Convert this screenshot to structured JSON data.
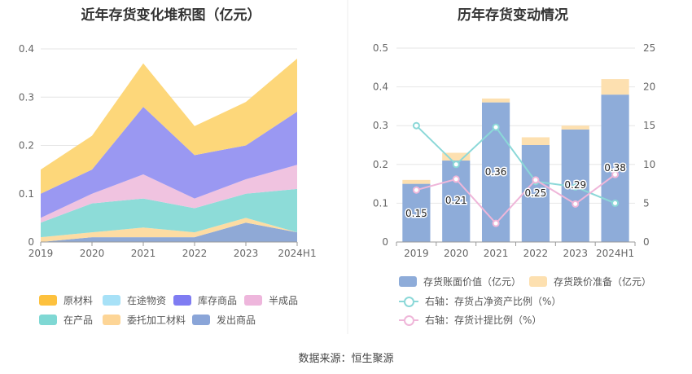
{
  "left_chart": {
    "title": "近年存货变化堆积图（亿元）",
    "chart_data": {
      "type": "area",
      "stacked": true,
      "categories": [
        "2019",
        "2020",
        "2021",
        "2022",
        "2023",
        "2024H1"
      ],
      "ylim": [
        0,
        0.4
      ],
      "yticks": [
        "0",
        "0.1",
        "0.2",
        "0.3",
        "0.4"
      ],
      "series": [
        {
          "name": "发出商品",
          "color": "#8fa9d6",
          "values": [
            0.0,
            0.01,
            0.01,
            0.01,
            0.04,
            0.02
          ]
        },
        {
          "name": "委托加工材料",
          "color": "#fddca3",
          "values": [
            0.01,
            0.01,
            0.02,
            0.01,
            0.01,
            0.0
          ]
        },
        {
          "name": "在产品",
          "color": "#8ddcd8",
          "values": [
            0.03,
            0.06,
            0.06,
            0.05,
            0.05,
            0.09
          ]
        },
        {
          "name": "半成品",
          "color": "#f0c3e0",
          "values": [
            0.01,
            0.02,
            0.05,
            0.02,
            0.03,
            0.05
          ]
        },
        {
          "name": "库存商品",
          "color": "#9a98f2",
          "values": [
            0.05,
            0.05,
            0.14,
            0.09,
            0.07,
            0.11
          ]
        },
        {
          "name": "在途物资",
          "color": "#aee4f6",
          "values": [
            0.0,
            0.0,
            0.0,
            0.0,
            0.0,
            0.0
          ]
        },
        {
          "name": "原材料",
          "color": "#fdd77a",
          "values": [
            0.05,
            0.07,
            0.09,
            0.06,
            0.09,
            0.11
          ]
        }
      ]
    },
    "legend": [
      {
        "label": "原材料",
        "color": "#fdc13e"
      },
      {
        "label": "在途物资",
        "color": "#a7e1f7"
      },
      {
        "label": "库存商品",
        "color": "#7f7cf2"
      },
      {
        "label": "半成品",
        "color": "#eeb6dc"
      },
      {
        "label": "在产品",
        "color": "#7fd8d4"
      },
      {
        "label": "委托加工材料",
        "color": "#fdd596"
      },
      {
        "label": "发出商品",
        "color": "#8aa5d8"
      }
    ]
  },
  "right_chart": {
    "title": "历年存货变动情况",
    "chart_data": {
      "type": "bar",
      "categories": [
        "2019",
        "2020",
        "2021",
        "2022",
        "2023",
        "2024H1"
      ],
      "ylim": [
        0,
        0.5
      ],
      "yticks": [
        "0",
        "0.1",
        "0.2",
        "0.3",
        "0.4",
        "0.5"
      ],
      "y2lim": [
        0,
        25
      ],
      "y2ticks": [
        "0",
        "5",
        "10",
        "15",
        "20",
        "25"
      ],
      "series": [
        {
          "name": "存货账面价值（亿元）",
          "color": "#8eacd9",
          "values": [
            0.15,
            0.21,
            0.36,
            0.25,
            0.29,
            0.38
          ],
          "labels": [
            "0.15",
            "0.21",
            "0.36",
            "0.25",
            "0.29",
            "0.38"
          ]
        },
        {
          "name": "存货跌价准备（亿元）",
          "color": "#fde0b0",
          "values": [
            0.01,
            0.02,
            0.01,
            0.02,
            0.01,
            0.04
          ]
        },
        {
          "name": "右轴：存货占净资产比例（%）",
          "color": "#8bd8d8",
          "axis": "right",
          "values": [
            15.0,
            10.0,
            14.8,
            7.8,
            7.1,
            5.0
          ]
        },
        {
          "name": "右轴：存货计提比例（%）",
          "color": "#efb6d9",
          "axis": "right",
          "values": [
            6.7,
            8.1,
            2.4,
            8.0,
            4.9,
            8.7
          ]
        }
      ]
    }
  },
  "source": "数据来源：恒生聚源"
}
